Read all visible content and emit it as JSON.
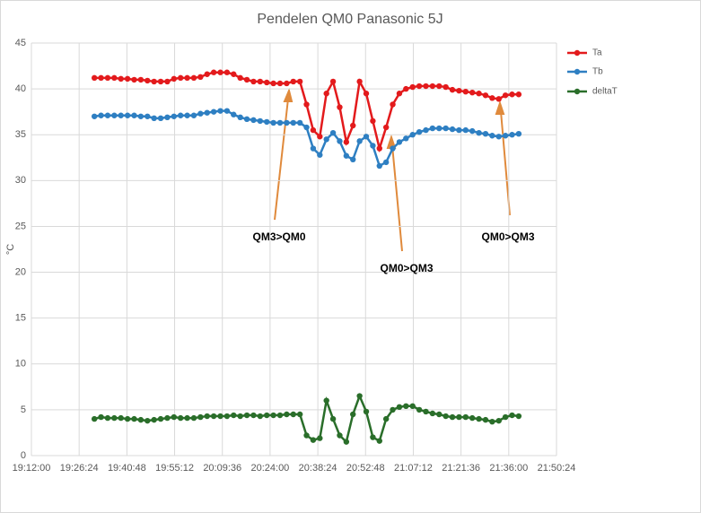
{
  "chart_data": {
    "type": "line",
    "title": "Pendelen QM0 Panasonic 5J",
    "ylabel": "°C",
    "x": [
      "19:31:00",
      "19:33:00",
      "19:35:00",
      "19:37:00",
      "19:39:00",
      "19:41:00",
      "19:43:00",
      "19:45:00",
      "19:47:00",
      "19:49:00",
      "19:51:00",
      "19:53:00",
      "19:55:00",
      "19:57:00",
      "19:59:00",
      "20:01:00",
      "20:03:00",
      "20:05:00",
      "20:07:00",
      "20:09:00",
      "20:11:00",
      "20:13:00",
      "20:15:00",
      "20:17:00",
      "20:19:00",
      "20:21:00",
      "20:23:00",
      "20:25:00",
      "20:27:00",
      "20:29:00",
      "20:31:00",
      "20:33:00",
      "20:35:00",
      "20:37:00",
      "20:39:00",
      "20:41:00",
      "20:43:00",
      "20:45:00",
      "20:47:00",
      "20:49:00",
      "20:51:00",
      "20:53:00",
      "20:55:00",
      "20:57:00",
      "20:59:00",
      "21:01:00",
      "21:03:00",
      "21:05:00",
      "21:07:00",
      "21:09:00",
      "21:11:00",
      "21:13:00",
      "21:15:00",
      "21:17:00",
      "21:19:00",
      "21:21:00",
      "21:23:00",
      "21:25:00",
      "21:27:00",
      "21:29:00",
      "21:31:00",
      "21:33:00",
      "21:35:00",
      "21:37:00",
      "21:39:00"
    ],
    "series": [
      {
        "name": "Ta",
        "color": "#e31a1c",
        "values": [
          41.2,
          41.2,
          41.2,
          41.2,
          41.1,
          41.1,
          41.0,
          41.0,
          40.9,
          40.8,
          40.8,
          40.8,
          41.1,
          41.2,
          41.2,
          41.2,
          41.3,
          41.6,
          41.8,
          41.8,
          41.8,
          41.6,
          41.2,
          41.0,
          40.8,
          40.8,
          40.7,
          40.6,
          40.6,
          40.6,
          40.8,
          40.8,
          38.3,
          35.5,
          34.8,
          39.5,
          40.8,
          38.0,
          34.2,
          36.0,
          40.8,
          39.5,
          36.5,
          33.5,
          35.8,
          38.3,
          39.5,
          40.0,
          40.2,
          40.3,
          40.3,
          40.3,
          40.3,
          40.2,
          39.9,
          39.8,
          39.7,
          39.6,
          39.5,
          39.3,
          39.0,
          38.9,
          39.3,
          39.4,
          39.4
        ]
      },
      {
        "name": "Tb",
        "color": "#2e7fc2",
        "values": [
          37.0,
          37.1,
          37.1,
          37.1,
          37.1,
          37.1,
          37.1,
          37.0,
          37.0,
          36.8,
          36.8,
          36.9,
          37.0,
          37.1,
          37.1,
          37.1,
          37.3,
          37.4,
          37.5,
          37.6,
          37.6,
          37.2,
          36.9,
          36.7,
          36.6,
          36.5,
          36.4,
          36.3,
          36.3,
          36.3,
          36.3,
          36.3,
          35.8,
          33.5,
          32.8,
          34.5,
          35.2,
          34.3,
          32.7,
          32.3,
          34.3,
          34.8,
          33.8,
          31.6,
          32.0,
          33.5,
          34.2,
          34.6,
          35.0,
          35.3,
          35.5,
          35.7,
          35.7,
          35.7,
          35.6,
          35.5,
          35.5,
          35.4,
          35.2,
          35.1,
          34.9,
          34.8,
          34.9,
          35.0,
          35.1
        ]
      },
      {
        "name": "deltaT",
        "color": "#2a6e2a",
        "values": [
          4.0,
          4.2,
          4.1,
          4.1,
          4.1,
          4.0,
          4.0,
          3.9,
          3.8,
          3.9,
          4.0,
          4.1,
          4.2,
          4.1,
          4.1,
          4.1,
          4.2,
          4.3,
          4.3,
          4.3,
          4.3,
          4.4,
          4.3,
          4.4,
          4.4,
          4.3,
          4.4,
          4.4,
          4.4,
          4.5,
          4.5,
          4.5,
          2.2,
          1.7,
          1.9,
          6.0,
          4.0,
          2.2,
          1.5,
          4.5,
          6.5,
          4.8,
          2.0,
          1.6,
          4.0,
          5.0,
          5.3,
          5.4,
          5.4,
          5.0,
          4.8,
          4.6,
          4.5,
          4.3,
          4.2,
          4.2,
          4.2,
          4.1,
          4.0,
          3.9,
          3.7,
          3.8,
          4.2,
          4.4,
          4.3
        ]
      }
    ],
    "xlim": [
      "19:12:00",
      "21:50:24"
    ],
    "xticks": [
      "19:12:00",
      "19:26:24",
      "19:40:48",
      "19:55:12",
      "20:09:36",
      "20:24:00",
      "20:38:24",
      "20:52:48",
      "21:07:12",
      "21:21:36",
      "21:36:00",
      "21:50:24"
    ],
    "ylim": [
      0,
      45
    ],
    "yticks": [
      0,
      5,
      10,
      15,
      20,
      25,
      30,
      35,
      40,
      45
    ],
    "grid": true,
    "legend": "right",
    "annotations": [
      "QM3>QM0",
      "QM0>QM3",
      "QM0>QM3"
    ]
  }
}
